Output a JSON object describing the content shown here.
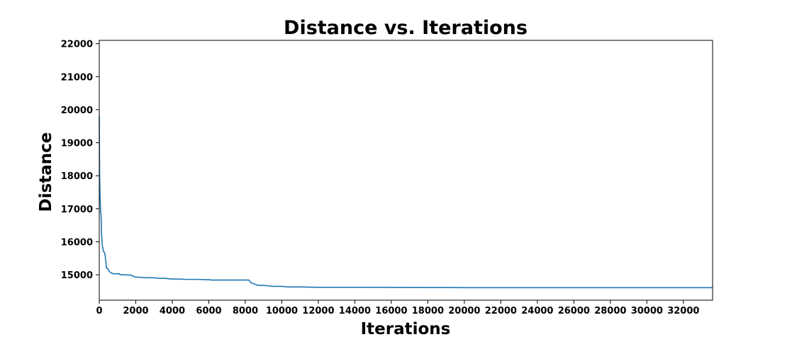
{
  "chart_data": {
    "type": "line",
    "title": "Distance vs. Iterations",
    "xlabel": "Iterations",
    "ylabel": "Distance",
    "xlim": [
      0,
      33600
    ],
    "ylim": [
      14230,
      22100
    ],
    "xticks": [
      0,
      2000,
      4000,
      6000,
      8000,
      10000,
      12000,
      14000,
      16000,
      18000,
      20000,
      22000,
      24000,
      26000,
      28000,
      30000,
      32000
    ],
    "yticks": [
      15000,
      16000,
      17000,
      18000,
      19000,
      20000,
      21000,
      22000
    ],
    "grid": false,
    "legend": "none",
    "colors": {
      "line": "#1f77b4",
      "frame": "#000000"
    },
    "series": [
      {
        "x": [
          0,
          10,
          20,
          40,
          60,
          80,
          100,
          130,
          160,
          200,
          230,
          260,
          300,
          340,
          400,
          450,
          500,
          550,
          650,
          800,
          1000,
          1100,
          1150,
          1400,
          1600,
          1700,
          1800,
          1900,
          2000,
          2300,
          2500,
          3000,
          3300,
          3600,
          3800,
          4000,
          4500,
          4700,
          5500,
          5800,
          6000,
          6200,
          8200,
          8300,
          8400,
          8600,
          8700,
          9000,
          9500,
          10000,
          10300,
          11000,
          12000,
          14000,
          20000,
          33600
        ],
        "y": [
          19800,
          18800,
          18000,
          17500,
          17100,
          16900,
          16800,
          16200,
          15900,
          15800,
          15700,
          15700,
          15650,
          15500,
          15200,
          15200,
          15150,
          15100,
          15050,
          15030,
          15030,
          15030,
          15000,
          15000,
          14990,
          14990,
          14980,
          14940,
          14930,
          14920,
          14910,
          14910,
          14890,
          14890,
          14880,
          14870,
          14870,
          14860,
          14860,
          14850,
          14850,
          14840,
          14840,
          14760,
          14740,
          14700,
          14680,
          14680,
          14650,
          14650,
          14630,
          14630,
          14620,
          14620,
          14610,
          14610
        ]
      }
    ]
  }
}
